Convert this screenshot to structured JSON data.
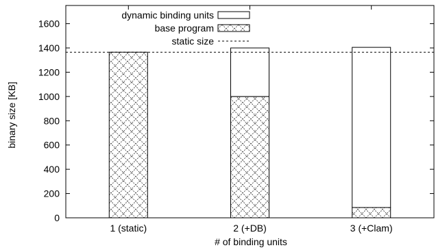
{
  "chart_data": {
    "type": "bar",
    "stacked": true,
    "title": "",
    "xlabel": "# of binding units",
    "ylabel": "binary size [KB]",
    "ylim": [
      0,
      1750
    ],
    "yticks": [
      0,
      200,
      400,
      600,
      800,
      1000,
      1200,
      1400,
      1600
    ],
    "categories": [
      "1 (static)",
      "2 (+DB)",
      "3 (+Clam)"
    ],
    "series": [
      {
        "name": "base program",
        "pattern": "crosshatch",
        "values": [
          1365,
          1000,
          85
        ]
      },
      {
        "name": "dynamic binding units",
        "pattern": "white",
        "values": [
          0,
          400,
          1320
        ]
      }
    ],
    "reference_line": {
      "name": "static size",
      "value": 1365,
      "style": "dashed"
    },
    "legend": {
      "placement": "top-right",
      "entries": [
        {
          "label": "dynamic binding units",
          "key": "dynamic binding units"
        },
        {
          "label": "base program",
          "key": "base program"
        },
        {
          "label": "static size",
          "key": "static size"
        }
      ]
    },
    "grid": false
  }
}
